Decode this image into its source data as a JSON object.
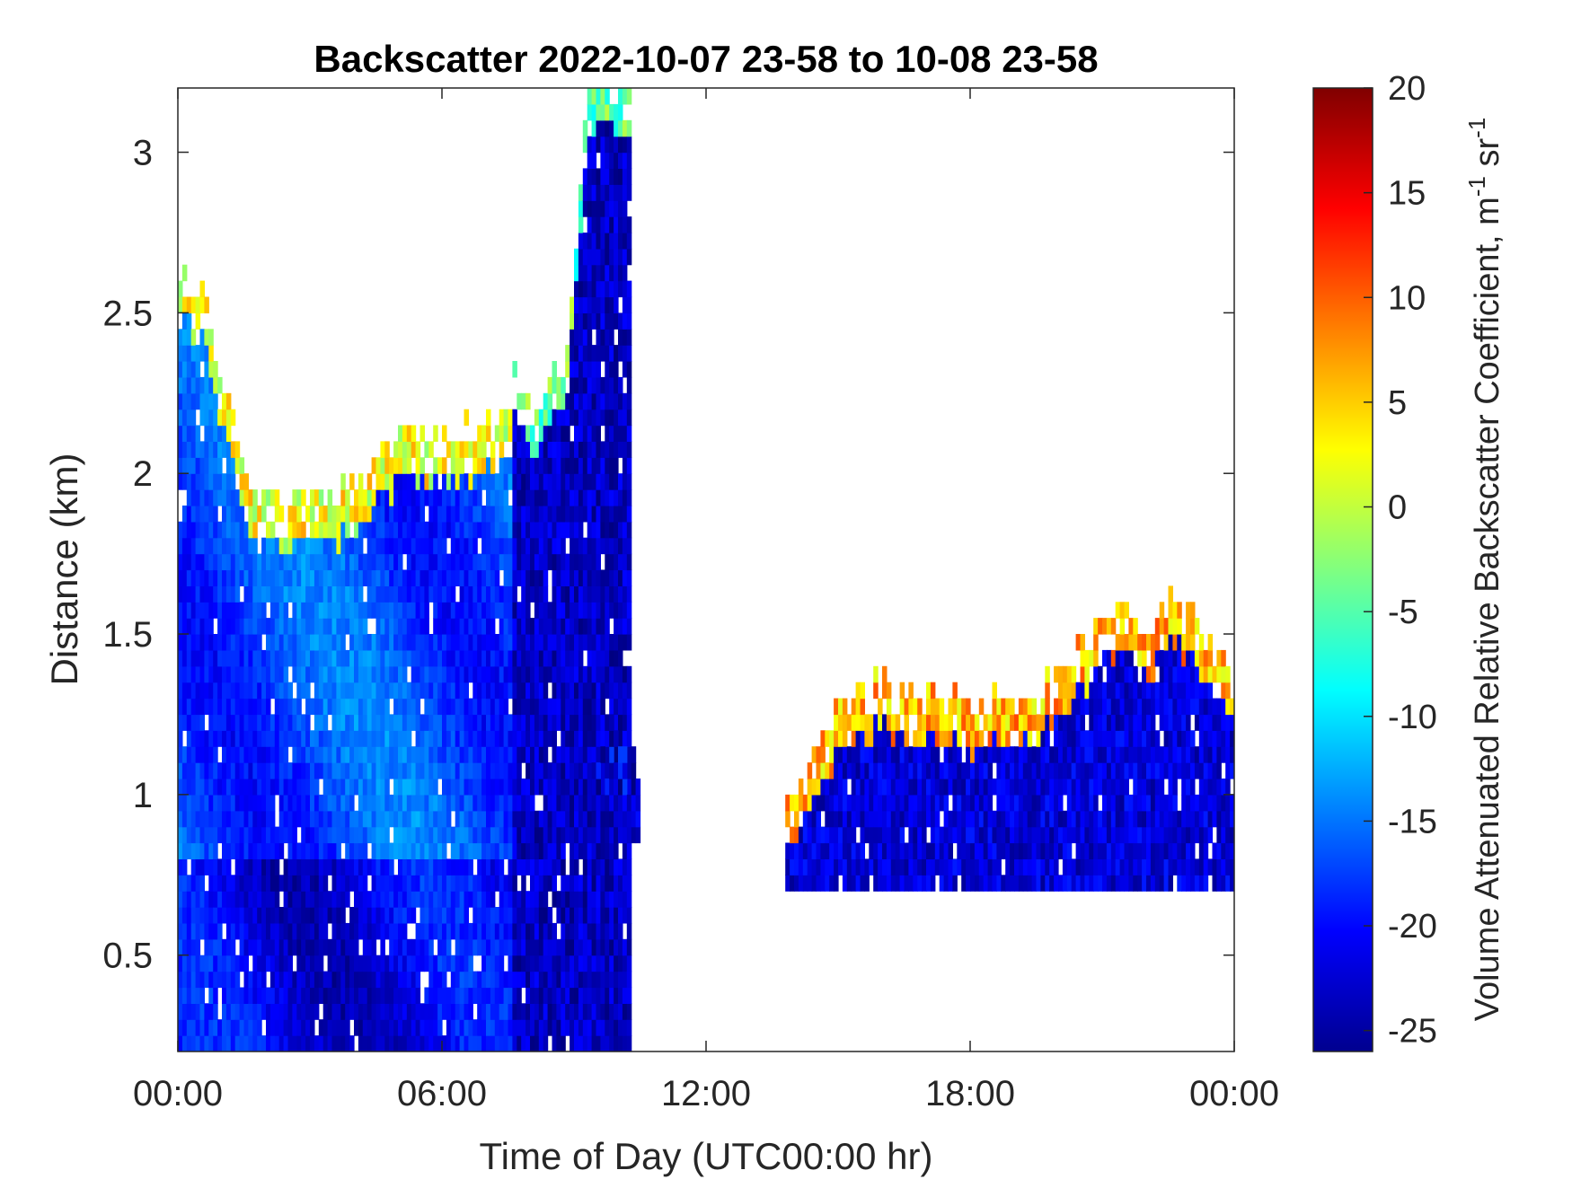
{
  "chart_data": {
    "type": "heatmap",
    "title": "Backscatter 2022-10-07 23-58 to 10-08 23-58",
    "xlabel": "Time of Day (UTC00:00 hr)",
    "ylabel": "Distance (km)",
    "xlim": [
      0,
      24
    ],
    "ylim": [
      0.2,
      3.2
    ],
    "x_ticks": [
      {
        "value": 0,
        "label": "00:00"
      },
      {
        "value": 6,
        "label": "06:00"
      },
      {
        "value": 12,
        "label": "12:00"
      },
      {
        "value": 18,
        "label": "18:00"
      },
      {
        "value": 24,
        "label": "00:00"
      }
    ],
    "y_ticks": [
      {
        "value": 0.5,
        "label": "0.5"
      },
      {
        "value": 1,
        "label": "1"
      },
      {
        "value": 1.5,
        "label": "1.5"
      },
      {
        "value": 2,
        "label": "2"
      },
      {
        "value": 2.5,
        "label": "2.5"
      },
      {
        "value": 3,
        "label": "3"
      }
    ],
    "colorbar": {
      "label_main": "Volume Attenuated Relative Backscatter Coefficient, m",
      "label_sup1": "-1",
      "label_mid": " sr",
      "label_sup2": "-1",
      "colormap": "jet",
      "clim": [
        -26,
        20
      ],
      "ticks": [
        {
          "value": 20,
          "label": "20"
        },
        {
          "value": 15,
          "label": "15"
        },
        {
          "value": 10,
          "label": "10"
        },
        {
          "value": 5,
          "label": "5"
        },
        {
          "value": 0,
          "label": "0"
        },
        {
          "value": -5,
          "label": "-5"
        },
        {
          "value": -10,
          "label": "-10"
        },
        {
          "value": -15,
          "label": "-15"
        },
        {
          "value": -20,
          "label": "-20"
        },
        {
          "value": -25,
          "label": "-25"
        }
      ]
    },
    "regions": [
      {
        "name": "boundary-layer-night",
        "t0": 0,
        "t1": 7.6,
        "z0": 0.2,
        "z_top_points": [
          [
            0,
            2.6
          ],
          [
            0.5,
            2.55
          ],
          [
            1,
            2.25
          ],
          [
            1.5,
            1.95
          ],
          [
            2.5,
            1.9
          ],
          [
            3.5,
            1.9
          ],
          [
            4,
            1.95
          ],
          [
            4.5,
            2.05
          ],
          [
            5,
            2.1
          ],
          [
            6,
            2.1
          ],
          [
            7,
            2.15
          ],
          [
            7.6,
            2.2
          ]
        ],
        "value": -17,
        "edge_value": 2
      },
      {
        "name": "morning-cloud-column",
        "t0": 7.6,
        "t1": 10.3,
        "z0": 0.2,
        "z_top_points": [
          [
            7.6,
            2.3
          ],
          [
            8.2,
            2.2
          ],
          [
            8.8,
            2.4
          ],
          [
            9.3,
            3.2
          ],
          [
            10.3,
            3.2
          ]
        ],
        "value": -23,
        "edge_value": -4
      },
      {
        "name": "midday-patch",
        "t0": 9.4,
        "t1": 10.5,
        "z0": 0.85,
        "z_top_points": [
          [
            9.4,
            1.05
          ],
          [
            9.8,
            1.2
          ],
          [
            10.2,
            1.15
          ],
          [
            10.5,
            1.0
          ]
        ],
        "value": -23,
        "edge_value": -22
      },
      {
        "name": "afternoon-layer",
        "t0": 13.8,
        "t1": 24,
        "z0": 0.7,
        "z_top_points": [
          [
            13.8,
            0.95
          ],
          [
            14.5,
            1.15
          ],
          [
            15,
            1.25
          ],
          [
            15.5,
            1.32
          ],
          [
            16,
            1.35
          ],
          [
            17,
            1.28
          ],
          [
            18,
            1.27
          ],
          [
            19,
            1.3
          ],
          [
            20,
            1.35
          ],
          [
            20.5,
            1.45
          ],
          [
            21,
            1.6
          ],
          [
            21.5,
            1.55
          ],
          [
            22,
            1.5
          ],
          [
            22.5,
            1.6
          ],
          [
            23,
            1.55
          ],
          [
            23.5,
            1.45
          ],
          [
            24,
            1.35
          ]
        ],
        "value": -22,
        "edge_value": 6
      }
    ]
  }
}
